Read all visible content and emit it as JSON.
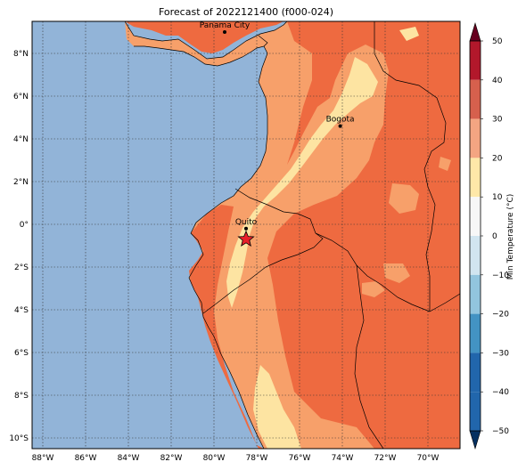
{
  "title": "Forecast of 2022121400 (f000-024)",
  "colors": {
    "ocean": "#92b4d8",
    "band_10_20": "#fde4a2",
    "band_20_30": "#f7a06a",
    "band_30_40": "#ee6a40",
    "star": "#e8202a"
  },
  "map": {
    "lon_range": [
      -88.5,
      -68.5
    ],
    "lat_range": [
      -10.5,
      9.5
    ],
    "lon_ticks": [
      {
        "v": -88,
        "label": "88°W"
      },
      {
        "v": -86,
        "label": "86°W"
      },
      {
        "v": -84,
        "label": "84°W"
      },
      {
        "v": -82,
        "label": "82°W"
      },
      {
        "v": -80,
        "label": "80°W"
      },
      {
        "v": -78,
        "label": "78°W"
      },
      {
        "v": -76,
        "label": "76°W"
      },
      {
        "v": -74,
        "label": "74°W"
      },
      {
        "v": -72,
        "label": "72°W"
      },
      {
        "v": -70,
        "label": "70°W"
      }
    ],
    "lat_ticks": [
      {
        "v": 8,
        "label": "8°N"
      },
      {
        "v": 6,
        "label": "6°N"
      },
      {
        "v": 4,
        "label": "4°N"
      },
      {
        "v": 2,
        "label": "2°N"
      },
      {
        "v": 0,
        "label": "0°"
      },
      {
        "v": -2,
        "label": "2°S"
      },
      {
        "v": -4,
        "label": "4°S"
      },
      {
        "v": -6,
        "label": "6°S"
      },
      {
        "v": -8,
        "label": "8°S"
      },
      {
        "v": -10,
        "label": "10°S"
      }
    ],
    "cities": [
      {
        "name": "Panama City",
        "lon": -79.5,
        "lat": 9.0
      },
      {
        "name": "Bogota",
        "lon": -74.1,
        "lat": 4.6
      },
      {
        "name": "Quito",
        "lon": -78.5,
        "lat": -0.2
      }
    ],
    "star": {
      "lon": -78.5,
      "lat": -0.7
    }
  },
  "colorbar": {
    "label": "Min Temperature (°C)",
    "levels": [
      50,
      40,
      30,
      20,
      10,
      0,
      -10,
      -20,
      -30,
      -40,
      -50
    ],
    "tick_labels": [
      "50",
      "40",
      "30",
      "20",
      "10",
      "0",
      "−10",
      "−20",
      "−30",
      "−40",
      "−50"
    ],
    "bands": [
      "#67001f",
      "#b2182b",
      "#d6604d",
      "#f4a582",
      "#fee8a8",
      "#f7f7f7",
      "#d1e5f0",
      "#92c5de",
      "#4393c3",
      "#2166ac",
      "#053061"
    ]
  }
}
